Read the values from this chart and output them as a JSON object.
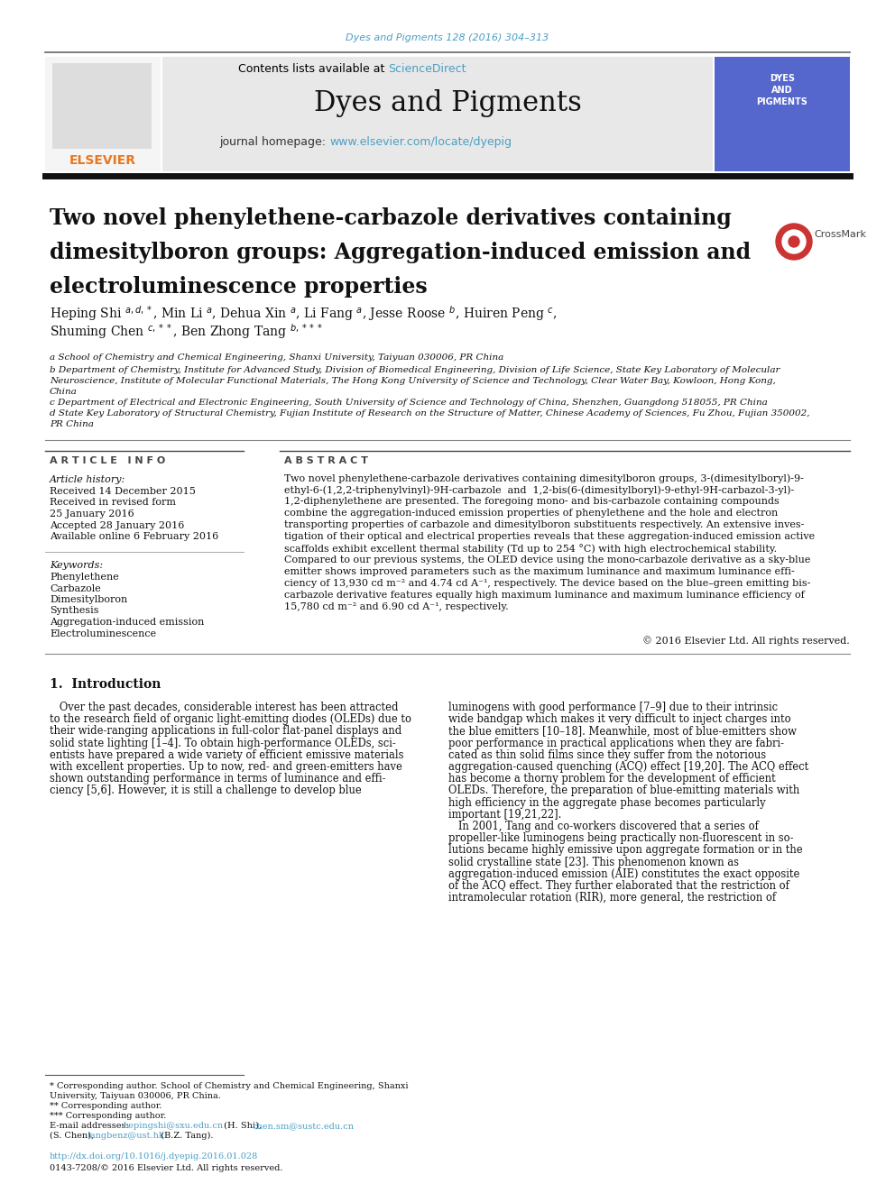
{
  "page_bg": "#ffffff",
  "top_citation": "Dyes and Pigments 128 (2016) 304–313",
  "top_citation_color": "#4a9fc4",
  "header_bg": "#e8e8e8",
  "journal_title": "Dyes and Pigments",
  "journal_homepage_label": "journal homepage: ",
  "journal_homepage_url": "www.elsevier.com/locate/dyepig",
  "journal_homepage_color": "#4a9fc4",
  "article_title_line1": "Two novel phenylethene-carbazole derivatives containing",
  "article_title_line2": "dimesitylboron groups: Aggregation-induced emission and",
  "article_title_line3": "electroluminescence properties",
  "affiliation_a": "a School of Chemistry and Chemical Engineering, Shanxi University, Taiyuan 030006, PR China",
  "affiliation_b1": "b Department of Chemistry, Institute for Advanced Study, Division of Biomedical Engineering, Division of Life Science, State Key Laboratory of Molecular",
  "affiliation_b2": "Neuroscience, Institute of Molecular Functional Materials, The Hong Kong University of Science and Technology, Clear Water Bay, Kowloon, Hong Kong,",
  "affiliation_b3": "China",
  "affiliation_c": "c Department of Electrical and Electronic Engineering, South University of Science and Technology of China, Shenzhen, Guangdong 518055, PR China",
  "affiliation_d1": "d State Key Laboratory of Structural Chemistry, Fujian Institute of Research on the Structure of Matter, Chinese Academy of Sciences, Fu Zhou, Fujian 350002,",
  "affiliation_d2": "PR China",
  "article_info_title": "A R T I C L E   I N F O",
  "abstract_title": "A B S T R A C T",
  "abstract_lines": [
    "Two novel phenylethene-carbazole derivatives containing dimesitylboron groups, 3-(dimesitylboryl)-9-",
    "ethyl-6-(1,2,2-triphenylvinyl)-9H-carbazole  and  1,2-bis(6-(dimesitylboryl)-9-ethyl-9H-carbazol-3-yl)-",
    "1,2-diphenylethene are presented. The foregoing mono- and bis-carbazole containing compounds",
    "combine the aggregation-induced emission properties of phenylethene and the hole and electron",
    "transporting properties of carbazole and dimesitylboron substituents respectively. An extensive inves-",
    "tigation of their optical and electrical properties reveals that these aggregation-induced emission active",
    "scaffolds exhibit excellent thermal stability (Td up to 254 °C) with high electrochemical stability.",
    "Compared to our previous systems, the OLED device using the mono-carbazole derivative as a sky-blue",
    "emitter shows improved parameters such as the maximum luminance and maximum luminance effi-",
    "ciency of 13,930 cd m⁻² and 4.74 cd A⁻¹, respectively. The device based on the blue–green emitting bis-",
    "carbazole derivative features equally high maximum luminance and maximum luminance efficiency of",
    "15,780 cd m⁻² and 6.90 cd A⁻¹, respectively."
  ],
  "copyright": "© 2016 Elsevier Ltd. All rights reserved.",
  "intro_left_lines": [
    "   Over the past decades, considerable interest has been attracted",
    "to the research field of organic light-emitting diodes (OLEDs) due to",
    "their wide-ranging applications in full-color flat-panel displays and",
    "solid state lighting [1–4]. To obtain high-performance OLEDs, sci-",
    "entists have prepared a wide variety of efficient emissive materials",
    "with excellent properties. Up to now, red- and green-emitters have",
    "shown outstanding performance in terms of luminance and effi-",
    "ciency [5,6]. However, it is still a challenge to develop blue"
  ],
  "intro_right_lines": [
    "luminogens with good performance [7–9] due to their intrinsic",
    "wide bandgap which makes it very difficult to inject charges into",
    "the blue emitters [10–18]. Meanwhile, most of blue-emitters show",
    "poor performance in practical applications when they are fabri-",
    "cated as thin solid films since they suffer from the notorious",
    "aggregation-caused quenching (ACQ) effect [19,20]. The ACQ effect",
    "has become a thorny problem for the development of efficient",
    "OLEDs. Therefore, the preparation of blue-emitting materials with",
    "high efficiency in the aggregate phase becomes particularly",
    "important [19,21,22].",
    "   In 2001, Tang and co-workers discovered that a series of",
    "propeller-like luminogens being practically non-fluorescent in so-",
    "lutions became highly emissive upon aggregate formation or in the",
    "solid crystalline state [23]. This phenomenon known as",
    "aggregation-induced emission (AIE) constitutes the exact opposite",
    "of the ACQ effect. They further elaborated that the restriction of",
    "intramolecular rotation (RIR), more general, the restriction of"
  ],
  "link_color": "#4a9fc4",
  "elsevier_orange": "#e87722"
}
